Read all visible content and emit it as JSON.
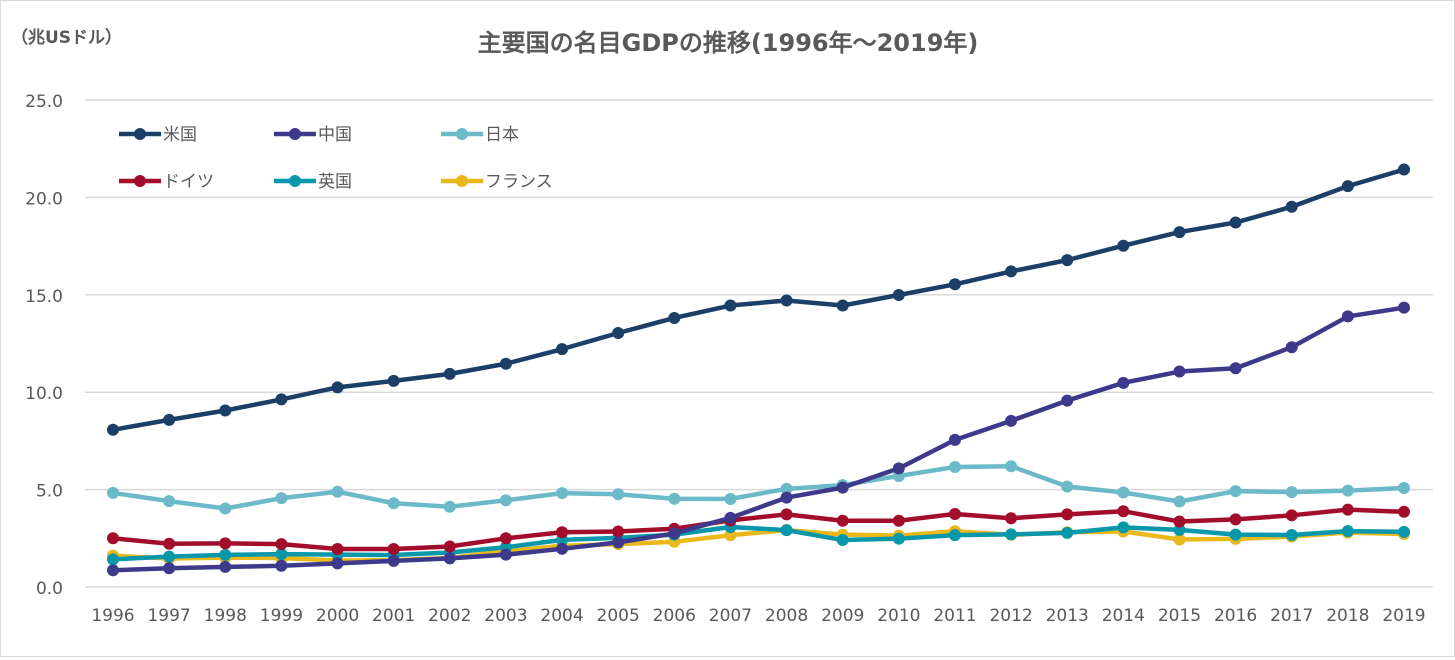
{
  "chart_data": {
    "type": "line",
    "title": "主要国の名目GDPの推移(1996年～2019年)",
    "ylabel": "（兆USドル）",
    "xlabel": "",
    "ylim": [
      0,
      25
    ],
    "yticks": [
      "0.0",
      "5.0",
      "10.0",
      "15.0",
      "20.0",
      "25.0"
    ],
    "grid": true,
    "legend_position": "top-left",
    "categories": [
      "1996",
      "1997",
      "1998",
      "1999",
      "2000",
      "2001",
      "2002",
      "2003",
      "2004",
      "2005",
      "2006",
      "2007",
      "2008",
      "2009",
      "2010",
      "2011",
      "2012",
      "2013",
      "2014",
      "2015",
      "2016",
      "2017",
      "2018",
      "2019"
    ],
    "series": [
      {
        "name": "米国",
        "color": "#1b3f66",
        "values": [
          8.07,
          8.58,
          9.06,
          9.63,
          10.25,
          10.58,
          10.94,
          11.46,
          12.21,
          13.04,
          13.81,
          14.45,
          14.71,
          14.45,
          14.99,
          15.54,
          16.2,
          16.78,
          17.52,
          18.22,
          18.71,
          19.52,
          20.58,
          21.43
        ]
      },
      {
        "name": "中国",
        "color": "#3d3a8c",
        "values": [
          0.86,
          0.96,
          1.03,
          1.09,
          1.21,
          1.34,
          1.47,
          1.66,
          1.96,
          2.29,
          2.75,
          3.55,
          4.59,
          5.1,
          6.09,
          7.55,
          8.53,
          9.57,
          10.48,
          11.06,
          11.23,
          12.31,
          13.89,
          14.34
        ]
      },
      {
        "name": "日本",
        "color": "#6cb9ca",
        "values": [
          4.83,
          4.41,
          4.03,
          4.56,
          4.89,
          4.3,
          4.12,
          4.45,
          4.82,
          4.76,
          4.53,
          4.52,
          5.04,
          5.23,
          5.7,
          6.16,
          6.2,
          5.16,
          4.85,
          4.39,
          4.92,
          4.87,
          4.95,
          5.08
        ]
      },
      {
        "name": "ドイツ",
        "color": "#a30d2c",
        "values": [
          2.5,
          2.22,
          2.24,
          2.2,
          1.95,
          1.95,
          2.08,
          2.5,
          2.81,
          2.85,
          2.99,
          3.42,
          3.73,
          3.4,
          3.4,
          3.75,
          3.53,
          3.73,
          3.89,
          3.36,
          3.47,
          3.68,
          3.97,
          3.86
        ]
      },
      {
        "name": "英国",
        "color": "#0a97aa",
        "values": [
          1.42,
          1.56,
          1.65,
          1.69,
          1.66,
          1.64,
          1.77,
          2.04,
          2.42,
          2.52,
          2.69,
          3.08,
          2.92,
          2.41,
          2.48,
          2.66,
          2.7,
          2.78,
          3.06,
          2.93,
          2.69,
          2.67,
          2.87,
          2.83
        ]
      },
      {
        "name": "フランス",
        "color": "#e9b91c",
        "values": [
          1.61,
          1.46,
          1.51,
          1.49,
          1.36,
          1.38,
          1.49,
          1.84,
          2.12,
          2.2,
          2.32,
          2.66,
          2.92,
          2.69,
          2.64,
          2.86,
          2.68,
          2.81,
          2.85,
          2.44,
          2.47,
          2.59,
          2.79,
          2.72
        ]
      }
    ]
  }
}
